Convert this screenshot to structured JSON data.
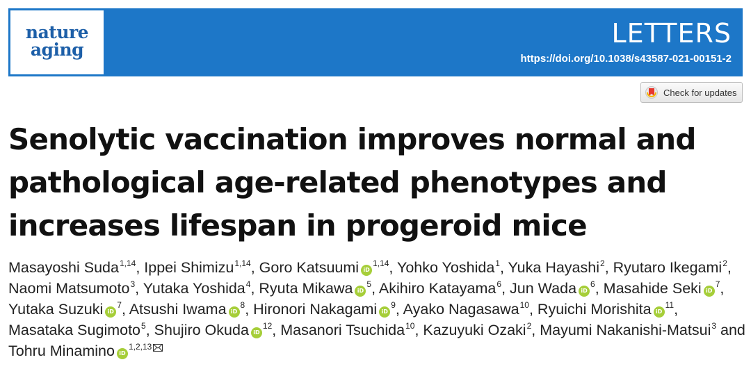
{
  "journal": {
    "logo_line1": "nature",
    "logo_line2": "aging"
  },
  "header": {
    "article_type": "LETTERS",
    "doi": "https://doi.org/10.1038/s43587-021-00151-2"
  },
  "check_updates": {
    "label": "Check for updates"
  },
  "title": "Senolytic vaccination improves normal and pathological age-related phenotypes and increases lifespan in progeroid mice",
  "authors": [
    {
      "name": "Masayoshi Suda",
      "orcid": false,
      "aff": "1,14",
      "sep": ", "
    },
    {
      "name": "Ippei Shimizu",
      "orcid": false,
      "aff": "1,14",
      "sep": ", "
    },
    {
      "name": "Goro Katsuumi",
      "orcid": true,
      "aff": "1,14",
      "sep": ", "
    },
    {
      "name": "Yohko Yoshida",
      "orcid": false,
      "aff": "1",
      "sep": ", "
    },
    {
      "name": "Yuka Hayashi",
      "orcid": false,
      "aff": "2",
      "sep": ", "
    },
    {
      "name": "Ryutaro Ikegami",
      "orcid": false,
      "aff": "2",
      "sep": ", "
    },
    {
      "name": "Naomi Matsumoto",
      "orcid": false,
      "aff": "3",
      "sep": ", "
    },
    {
      "name": "Yutaka Yoshida",
      "orcid": false,
      "aff": "4",
      "sep": ", "
    },
    {
      "name": "Ryuta Mikawa",
      "orcid": true,
      "aff": "5",
      "sep": ", "
    },
    {
      "name": "Akihiro Katayama",
      "orcid": false,
      "aff": "6",
      "sep": ", "
    },
    {
      "name": "Jun Wada",
      "orcid": true,
      "aff": "6",
      "sep": ", "
    },
    {
      "name": "Masahide Seki",
      "orcid": true,
      "aff": "7",
      "sep": ", "
    },
    {
      "name": "Yutaka Suzuki",
      "orcid": true,
      "aff": "7",
      "sep": ", "
    },
    {
      "name": "Atsushi Iwama",
      "orcid": true,
      "aff": "8",
      "sep": ", "
    },
    {
      "name": "Hironori Nakagami",
      "orcid": true,
      "aff": "9",
      "sep": ", "
    },
    {
      "name": "Ayako Nagasawa",
      "orcid": false,
      "aff": "10",
      "sep": ", "
    },
    {
      "name": "Ryuichi Morishita",
      "orcid": true,
      "aff": "11",
      "sep": ", "
    },
    {
      "name": "Masataka Sugimoto",
      "orcid": false,
      "aff": "5",
      "sep": ", "
    },
    {
      "name": "Shujiro Okuda",
      "orcid": true,
      "aff": "12",
      "sep": ", "
    },
    {
      "name": "Masanori Tsuchida",
      "orcid": false,
      "aff": "10",
      "sep": ", "
    },
    {
      "name": "Kazuyuki Ozaki",
      "orcid": false,
      "aff": "2",
      "sep": ", "
    },
    {
      "name": "Mayumi Nakanishi-Matsui",
      "orcid": false,
      "aff": "3",
      "sep": " and "
    },
    {
      "name": "Tohru Minamino",
      "orcid": true,
      "aff": "1,2,13",
      "sep": "",
      "corresponding": true
    }
  ]
}
